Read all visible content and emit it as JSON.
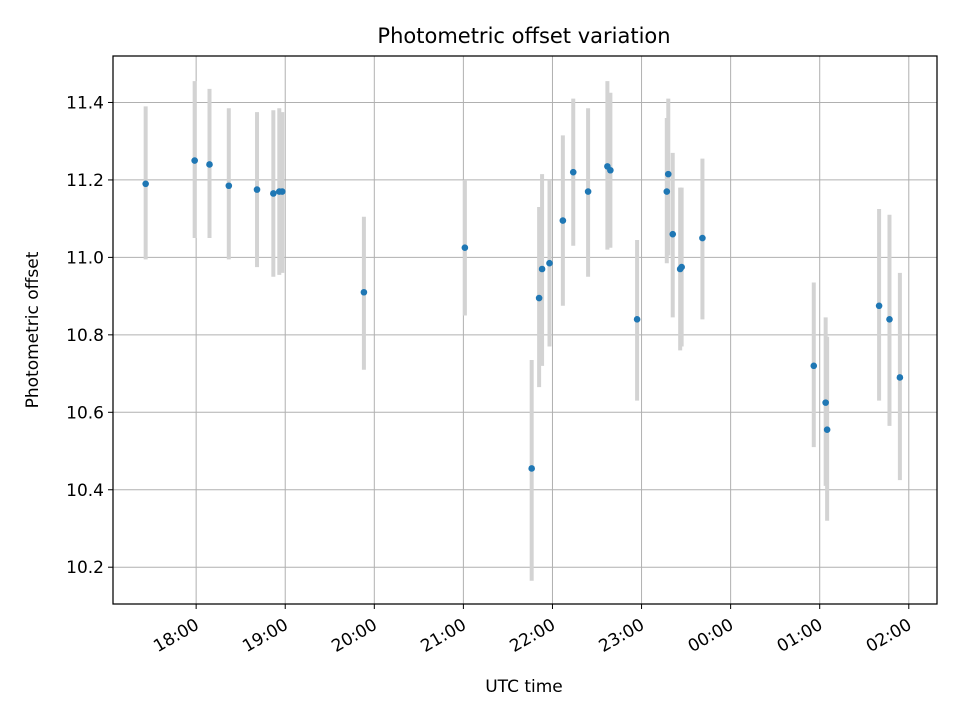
{
  "chart_data": {
    "type": "scatter",
    "title": "Photometric offset variation",
    "xlabel": "UTC time",
    "ylabel": "Photometric offset",
    "x_axis": {
      "kind": "time",
      "xlim": [
        "17:04",
        "02:19"
      ],
      "ticks": [
        "18:00",
        "19:00",
        "20:00",
        "21:00",
        "22:00",
        "23:00",
        "00:00",
        "01:00",
        "02:00"
      ],
      "tick_label_rotation_deg": 30
    },
    "y_axis": {
      "ylim": [
        10.105,
        11.52
      ],
      "ticks": [
        10.2,
        10.4,
        10.6,
        10.8,
        11.0,
        11.2,
        11.4
      ],
      "tick_labels": [
        "10.2",
        "10.4",
        "10.6",
        "10.8",
        "11.0",
        "11.2",
        "11.4"
      ]
    },
    "grid": true,
    "marker_color": "#1f77b4",
    "errorbar_color": "#d3d3d3",
    "series": [
      {
        "points": [
          {
            "x": "17:26",
            "y": 11.19,
            "lo": 10.995,
            "hi": 11.39
          },
          {
            "x": "17:59",
            "y": 11.25,
            "lo": 11.05,
            "hi": 11.455
          },
          {
            "x": "18:09",
            "y": 11.24,
            "lo": 11.05,
            "hi": 11.435
          },
          {
            "x": "18:22",
            "y": 11.185,
            "lo": 10.995,
            "hi": 11.385
          },
          {
            "x": "18:41",
            "y": 11.175,
            "lo": 10.975,
            "hi": 11.375
          },
          {
            "x": "18:52",
            "y": 11.165,
            "lo": 10.95,
            "hi": 11.38
          },
          {
            "x": "18:56",
            "y": 11.17,
            "lo": 10.955,
            "hi": 11.385
          },
          {
            "x": "18:58",
            "y": 11.17,
            "lo": 10.96,
            "hi": 11.375
          },
          {
            "x": "19:53",
            "y": 10.91,
            "lo": 10.71,
            "hi": 11.105
          },
          {
            "x": "21:01",
            "y": 11.025,
            "lo": 10.85,
            "hi": 11.2
          },
          {
            "x": "21:46",
            "y": 10.455,
            "lo": 10.165,
            "hi": 10.735
          },
          {
            "x": "21:51",
            "y": 10.895,
            "lo": 10.665,
            "hi": 11.13
          },
          {
            "x": "21:53",
            "y": 10.97,
            "lo": 10.72,
            "hi": 11.215
          },
          {
            "x": "21:58",
            "y": 10.985,
            "lo": 10.77,
            "hi": 11.2
          },
          {
            "x": "22:07",
            "y": 11.095,
            "lo": 10.875,
            "hi": 11.315
          },
          {
            "x": "22:14",
            "y": 11.22,
            "lo": 11.03,
            "hi": 11.41
          },
          {
            "x": "22:24",
            "y": 11.17,
            "lo": 10.95,
            "hi": 11.385
          },
          {
            "x": "22:37",
            "y": 11.235,
            "lo": 11.02,
            "hi": 11.455
          },
          {
            "x": "22:39",
            "y": 11.225,
            "lo": 11.025,
            "hi": 11.425
          },
          {
            "x": "22:57",
            "y": 10.84,
            "lo": 10.63,
            "hi": 11.045
          },
          {
            "x": "23:17",
            "y": 11.17,
            "lo": 10.985,
            "hi": 11.36
          },
          {
            "x": "23:18",
            "y": 11.215,
            "lo": 11.005,
            "hi": 11.41
          },
          {
            "x": "23:21",
            "y": 11.06,
            "lo": 10.845,
            "hi": 11.27
          },
          {
            "x": "23:26",
            "y": 10.97,
            "lo": 10.76,
            "hi": 11.18
          },
          {
            "x": "23:27",
            "y": 10.975,
            "lo": 10.77,
            "hi": 11.18
          },
          {
            "x": "23:41",
            "y": 11.05,
            "lo": 10.84,
            "hi": 11.255
          },
          {
            "x": "00:56",
            "y": 10.72,
            "lo": 10.51,
            "hi": 10.935
          },
          {
            "x": "01:04",
            "y": 10.625,
            "lo": 10.41,
            "hi": 10.845
          },
          {
            "x": "01:05",
            "y": 10.555,
            "lo": 10.32,
            "hi": 10.795
          },
          {
            "x": "01:40",
            "y": 10.875,
            "lo": 10.63,
            "hi": 11.125
          },
          {
            "x": "01:47",
            "y": 10.84,
            "lo": 10.565,
            "hi": 11.11
          },
          {
            "x": "01:54",
            "y": 10.69,
            "lo": 10.425,
            "hi": 10.96
          }
        ]
      }
    ]
  }
}
